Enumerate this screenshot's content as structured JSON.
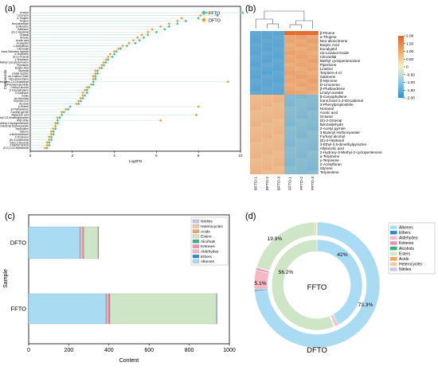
{
  "chart_data": [
    {
      "panel": "(a)",
      "type": "scatter",
      "xlabel": "Log2FD",
      "ylabel": "Compounds",
      "xlim": [
        0,
        10
      ],
      "xticks": [
        "0",
        "2",
        "4",
        "6",
        "8",
        "10"
      ],
      "legend": [
        "FFTO",
        "DFTO"
      ],
      "categories": [
        "Linalool",
        "Limonene",
        "α-Thujene",
        "Thujene",
        "Benzaldehyde",
        "β-Myrcene",
        "Sabinene",
        "(E)-2-Heptenal",
        "Octanal",
        "Anisole",
        "Acetic acid",
        "Eucalyptol",
        "2-Acetylfuran",
        "Citronellal",
        "trans-Sabinene hydrate",
        "α-Terpinene",
        "(E)-2-Octenal",
        "γ-Terpinene",
        "Methyl cyclopentenolone",
        "Piperitone",
        "Butyric Acid",
        "Myrtenal",
        "Linalyl acetate",
        "cis-Linalool Oxide",
        "Neo-alloocimene",
        "trans,trans-2,4-Decadienal",
        "3-Phenylpropionitrile",
        "Furfuryl alcohol",
        "β-Caryophyllene",
        "δ-Cadinene",
        "Indole",
        "cis-Nerolidol",
        "Terpinen-4-ol",
        "Hexanal",
        "β-Pinene",
        "β-Phellandrene",
        "2-Acetyl pyrrole",
        "Allylacetic acid",
        "3-Ethyl-2,5-dimethylpyrazine",
        "Allyl nitrile",
        "2-Hydroxy-3-Methyl-2-cyclopentenone",
        "3-Butenyl isothiocyanate",
        "Terpinolene",
        "Styrene",
        "α-Butenolactone",
        "2-Octanone",
        "(E)-4-Undecenal",
        "trans-2-Decenal",
        "2-Methyl furfural",
        "(E,E)-2,4-Heptadienal"
      ],
      "series": [
        {
          "name": "FFTO",
          "values": [
            10.1,
            8.9,
            8.0,
            7.4,
            7.0,
            6.6,
            6.4,
            6.0,
            5.6,
            5.4,
            5.2,
            5.0,
            4.6,
            4.3,
            4.1,
            4.0,
            3.9,
            3.7,
            3.6,
            3.5,
            3.4,
            3.2,
            3.2,
            3.1,
            3.1,
            3.0,
            3.0,
            2.8,
            2.7,
            2.7,
            2.6,
            2.5,
            2.4,
            2.3,
            1.9,
            1.8,
            1.6,
            1.5,
            1.4,
            1.3,
            1.3,
            1.2,
            1.2,
            1.1,
            1.1,
            1.0,
            1.0,
            0.9,
            0.9,
            0.8
          ]
        },
        {
          "name": "DFTO",
          "values": [
            8.4,
            8.1,
            7.2,
            7.0,
            6.6,
            6.2,
            5.8,
            5.6,
            5.3,
            5.1,
            4.9,
            4.7,
            4.4,
            4.2,
            4.0,
            3.8,
            3.7,
            3.6,
            3.5,
            3.4,
            3.3,
            3.1,
            3.1,
            3.0,
            3.0,
            9.4,
            2.9,
            2.7,
            2.6,
            2.5,
            2.5,
            2.4,
            2.3,
            2.2,
            8.0,
            1.7,
            1.5,
            7.9,
            1.3,
            6.2,
            1.2,
            1.2,
            1.1,
            1.0,
            1.0,
            0.9,
            0.9,
            0.8,
            0.8,
            0.7
          ]
        }
      ]
    },
    {
      "panel": "(b)",
      "type": "heatmap",
      "columns": [
        "DFTO-1",
        "DFTO-2",
        "DFTO-3",
        "FFTO-1",
        "FFTO-2",
        "FFTO-3"
      ],
      "rows": [
        "β-Pinene",
        "α-Thujene",
        "Neo-alloocimene",
        "Butyric Acid",
        "Eucalyptol",
        "cis-Linalool Oxide",
        "Citronellal",
        "Methyl cyclopentenolone",
        "Piperitone",
        "Linalool",
        "Terpinen-4-ol",
        "Sabinene",
        "β-Myrcene",
        "D-Limonene",
        "β-Phellandrene",
        "Linalyl acetate",
        "β-Caryophyllene",
        "trans,trans-2,4-Decadienal",
        "3-Phenylpropionitrile",
        "Nonanal",
        "Acetic acid",
        "Octanal",
        "(E)-2-Octenal",
        "Benzaldehyde",
        "2-Acetyl pyrrole",
        "3-Butenyl isothiocyanate",
        "Furfuryl alcohol",
        "(E)-2-Heptenal",
        "3-Ethyl-2,5-dimethylpyrazine",
        "Allylacetic acid",
        "2-Hydroxy-3-Methyl-2-cyclopentenone",
        "α-Terpinene",
        "γ-Terpinene",
        "2-Acetylfuran",
        "Styrene",
        "Terpinolene"
      ],
      "colorbar": {
        "ticks": [
          "2.00",
          "1.50",
          "1.00",
          "0.50",
          "0",
          "-0.50",
          "-1.00",
          "-1.50",
          "-2.00"
        ],
        "low": "#2c8fd6",
        "mid": "#f5efc8",
        "high": "#e0662a"
      }
    },
    {
      "panel": "(c)",
      "type": "bar",
      "orientation": "horizontal",
      "stacked": true,
      "categories": [
        "DFTO",
        "FFTO"
      ],
      "ylabel": "Sample",
      "xlabel": "Content",
      "xlim": [
        0,
        1000
      ],
      "xticks": [
        "0",
        "200",
        "400",
        "600",
        "800",
        "1000"
      ],
      "legend": [
        "Nitriles",
        "Heterocycles",
        "Acids",
        "Esters",
        "Alcohols",
        "Ketones",
        "Aldehydes",
        "Ethers",
        "Alkenes"
      ],
      "series": [
        {
          "name": "Alkenes",
          "values": [
            255,
            385
          ]
        },
        {
          "name": "Ethers",
          "values": [
            2,
            2
          ]
        },
        {
          "name": "Aldehydes",
          "values": [
            12,
            9
          ]
        },
        {
          "name": "Ketones",
          "values": [
            4,
            6
          ]
        },
        {
          "name": "Alcohols",
          "values": [
            2,
            3
          ]
        },
        {
          "name": "Esters",
          "values": [
            70,
            530
          ]
        },
        {
          "name": "Acids",
          "values": [
            2,
            2
          ]
        },
        {
          "name": "Heterocycles",
          "values": [
            1,
            1
          ]
        },
        {
          "name": "Nitriles",
          "values": [
            1,
            1
          ]
        }
      ]
    },
    {
      "panel": "(d)",
      "type": "pie",
      "style": "nested-donut",
      "inner_ring": "FFTO",
      "outer_ring": "DFTO",
      "legend": [
        "Alkenes",
        "Ethers",
        "Aldehydes",
        "Ketones",
        "Alcohols",
        "Esters",
        "Acids",
        "Heterocycles",
        "Nitriles"
      ],
      "rings": [
        {
          "name": "FFTO",
          "values": [
            42.0,
            0.3,
            1.0,
            0.3,
            0.2,
            56.2,
            0.0,
            0.0,
            0.0
          ]
        },
        {
          "name": "DFTO",
          "values": [
            73.3,
            0.4,
            5.1,
            0.6,
            0.2,
            19.9,
            0.3,
            0.1,
            0.1
          ]
        }
      ],
      "labels": [
        {
          "ring": "FFTO",
          "category": "Alkenes",
          "text": "42%"
        },
        {
          "ring": "FFTO",
          "category": "Esters",
          "text": "56.2%"
        },
        {
          "ring": "DFTO",
          "category": "Alkenes",
          "text": "73.3%"
        },
        {
          "ring": "DFTO",
          "category": "Aldehydes",
          "text": "5.1%"
        },
        {
          "ring": "DFTO",
          "category": "Esters",
          "text": "19.9%"
        }
      ]
    }
  ],
  "colors": {
    "FFTO": "#3cc6a4",
    "DFTO": "#f59a3a",
    "stem": "#cfe8e0",
    "Nitriles": "#c9c6e8",
    "Heterocycles": "#f3c9a8",
    "Acids": "#f5a35a",
    "Esters": "#cfe6c6",
    "Alcohols": "#2fb37a",
    "Ketones": "#ef8fb0",
    "Aldehydes": "#f7b8c6",
    "Ethers": "#1f8ed1",
    "Alkenes": "#a9dcf2"
  }
}
